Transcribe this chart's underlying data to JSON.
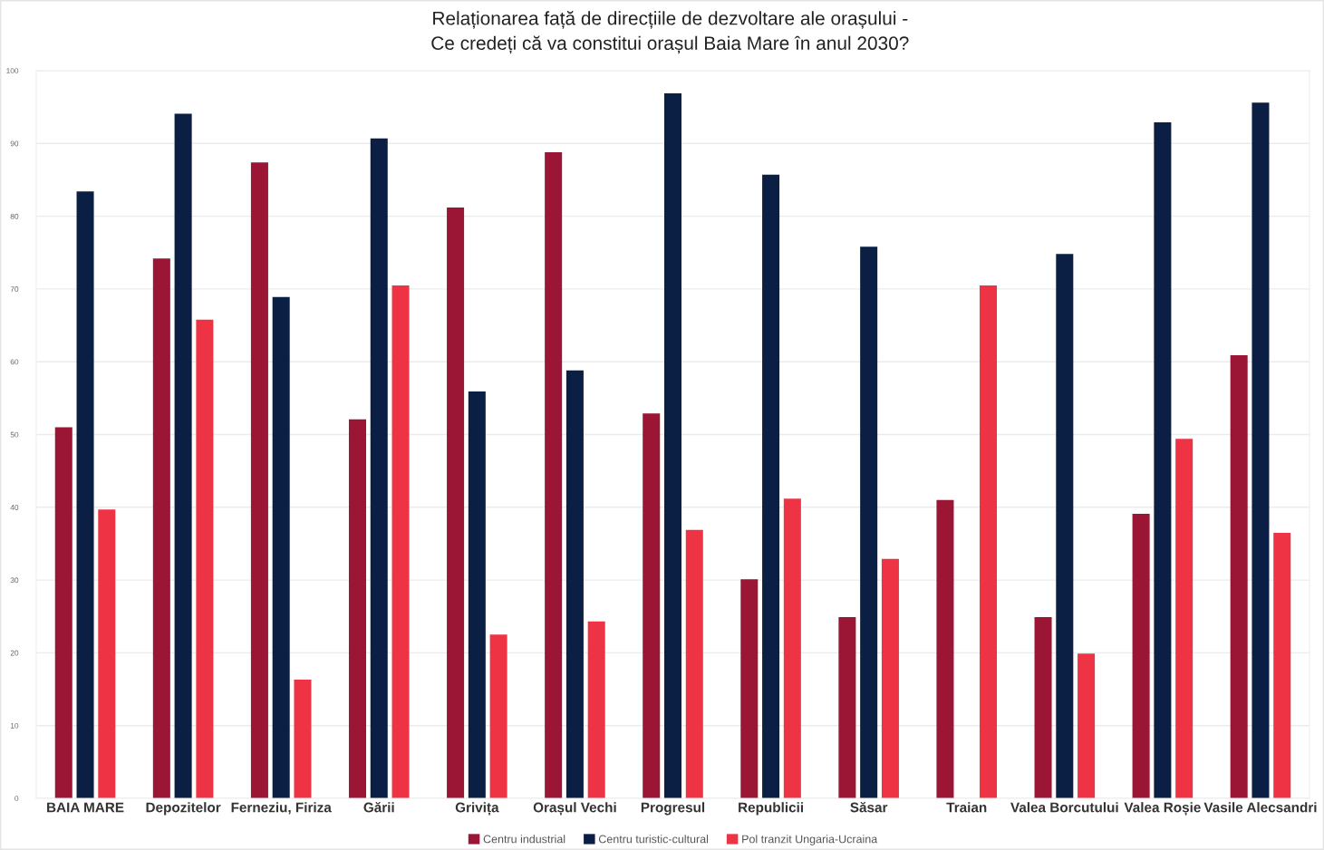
{
  "chart_data": {
    "type": "bar",
    "title": "Relaționarea față de direcțiile de dezvoltare ale orașului -\nCe credeți că va constitui orașul Baia Mare în anul 2030?",
    "categories": [
      "BAIA MARE",
      "Depozitelor",
      "Ferneziu, Firiza",
      "Gării",
      "Grivița",
      "Orașul Vechi",
      "Progresul",
      "Republicii",
      "Săsar",
      "Traian",
      "Valea Borcutului",
      "Valea Roșie",
      "Vasile Alecsandri"
    ],
    "series": [
      {
        "name": "Centru industrial",
        "color": "#9b1535",
        "values": [
          51.0,
          74.2,
          87.4,
          52.1,
          81.2,
          88.8,
          52.9,
          30.1,
          24.9,
          41.0,
          24.9,
          39.1,
          60.9
        ]
      },
      {
        "name": "Centru turistic-cultural",
        "color": "#0b1f45",
        "values": [
          83.4,
          94.1,
          68.9,
          90.7,
          55.9,
          58.8,
          96.9,
          85.7,
          75.8,
          null,
          74.8,
          92.9,
          95.6
        ]
      },
      {
        "name": "Pol tranzit Ungaria-Ucraina",
        "color": "#ee3444",
        "values": [
          39.7,
          65.8,
          16.3,
          70.5,
          22.5,
          24.3,
          36.9,
          41.2,
          32.9,
          70.5,
          19.9,
          49.4,
          36.5
        ]
      }
    ],
    "ylim": [
      0,
      100
    ],
    "yticks": [
      0,
      10,
      20,
      30,
      40,
      50,
      60,
      70,
      80,
      90,
      100
    ],
    "grid": "y",
    "legend": "bottom"
  }
}
